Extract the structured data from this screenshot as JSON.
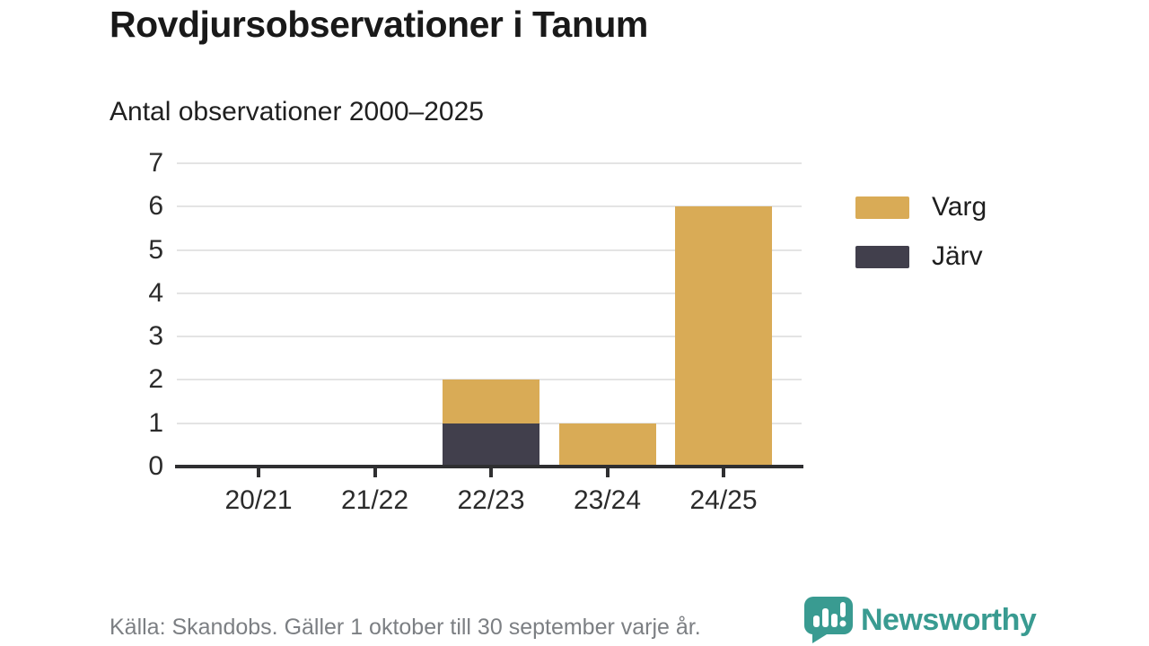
{
  "header": {
    "title": "Rovdjursobservationer i Tanum",
    "subtitle": "Antal observationer 2000–2025"
  },
  "chart_data": {
    "type": "bar",
    "stacked": true,
    "title": "Rovdjursobservationer i Tanum",
    "subtitle": "Antal observationer 2000–2025",
    "categories": [
      "20/21",
      "21/22",
      "22/23",
      "23/24",
      "24/25"
    ],
    "series": [
      {
        "name": "Varg",
        "color": "#d9ab56",
        "values": [
          0,
          0,
          1,
          1,
          6
        ]
      },
      {
        "name": "Järv",
        "color": "#413f4c",
        "values": [
          0,
          0,
          1,
          0,
          0
        ]
      }
    ],
    "stack_order_bottom_to_top": [
      "Järv",
      "Varg"
    ],
    "totals": [
      0,
      0,
      2,
      1,
      6
    ],
    "xlabel": "",
    "ylabel": "",
    "ylim": [
      0,
      7
    ],
    "yticks": [
      0,
      1,
      2,
      3,
      4,
      5,
      6,
      7
    ],
    "grid": true,
    "legend_position": "right"
  },
  "colors": {
    "varg": "#d9ab56",
    "jarv": "#413f4c",
    "gridline": "#e4e4e4",
    "axis": "#2f2f31",
    "brand_teal": "#399b91"
  },
  "footer": {
    "source": "Källa: Skandobs. Gäller 1 oktober till 30 september varje år.",
    "brand": "Newsworthy"
  }
}
